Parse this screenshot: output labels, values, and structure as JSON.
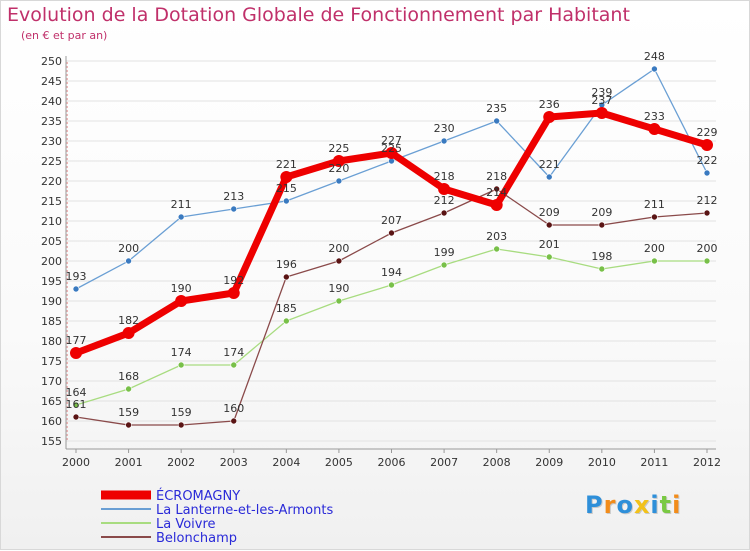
{
  "title": "Evolution de la Dotation Globale de Fonctionnement par Habitant",
  "subtitle": "(en € et par an)",
  "logo": "Proxiti",
  "logo_colors": [
    "#2e8fd9",
    "#f28c1a",
    "#2e8fd9",
    "#f2c21a",
    "#2e8fd9",
    "#7ac943",
    "#f28c1a"
  ],
  "chart_data": {
    "type": "line",
    "title": "Evolution de la Dotation Globale de Fonctionnement par Habitant",
    "subtitle": "(en € et par an)",
    "x": [
      "2000",
      "2001",
      "2002",
      "2003",
      "2004",
      "2005",
      "2006",
      "2007",
      "2008",
      "2009",
      "2010",
      "2011",
      "2012"
    ],
    "ylim": [
      155,
      250
    ],
    "ytick_step": 5,
    "grid": "horizontal",
    "legend_position": "bottom-left",
    "series": [
      {
        "name": "La Lanterne-et-les-Armonts",
        "color": "#6a9fd4",
        "marker": "#3a7ac0",
        "width": 1.3,
        "marker_size": 3,
        "values": [
          193,
          200,
          211,
          213,
          215,
          220,
          225,
          230,
          235,
          221,
          239,
          248,
          222
        ]
      },
      {
        "name": "La Voivre",
        "color": "#a8dc80",
        "marker": "#78c048",
        "width": 1.3,
        "marker_size": 3,
        "values": [
          164,
          168,
          174,
          174,
          185,
          190,
          194,
          199,
          203,
          201,
          198,
          200,
          200
        ]
      },
      {
        "name": "Belonchamp",
        "color": "#8a4a4a",
        "marker": "#5a1414",
        "width": 1.3,
        "marker_size": 3,
        "values": [
          161,
          159,
          159,
          160,
          196,
          200,
          207,
          212,
          218,
          209,
          209,
          211,
          212
        ]
      },
      {
        "name": "ÉCROMAGNY",
        "color": "#ee0000",
        "marker": "#ee0000",
        "width": 7,
        "marker_size": 6,
        "values": [
          177,
          182,
          190,
          192,
          221,
          225,
          227,
          218,
          214,
          236,
          237,
          233,
          229
        ]
      }
    ]
  }
}
